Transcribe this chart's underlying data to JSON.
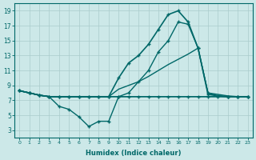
{
  "xlabel": "Humidex (Indice chaleur)",
  "bg_color": "#cce8e8",
  "grid_color": "#aacccc",
  "line_color": "#006868",
  "xlim": [
    -0.5,
    23.5
  ],
  "ylim": [
    2.0,
    20.0
  ],
  "xticks": [
    0,
    1,
    2,
    3,
    4,
    5,
    6,
    7,
    8,
    9,
    10,
    11,
    12,
    13,
    14,
    15,
    16,
    17,
    18,
    19,
    20,
    21,
    22,
    23
  ],
  "yticks": [
    3,
    5,
    7,
    9,
    11,
    13,
    15,
    17,
    19
  ],
  "curves": [
    {
      "x": [
        0,
        1,
        2,
        3,
        4,
        5,
        6,
        7,
        8,
        9,
        10,
        11,
        12,
        13,
        14,
        15,
        16,
        17,
        18,
        19,
        20,
        21,
        22,
        23
      ],
      "y": [
        8.3,
        8.0,
        7.7,
        7.5,
        7.5,
        7.5,
        7.5,
        7.5,
        7.5,
        7.5,
        7.5,
        7.5,
        7.5,
        7.5,
        7.5,
        7.5,
        7.5,
        7.5,
        7.5,
        7.5,
        7.5,
        7.5,
        7.5,
        7.5
      ],
      "marker": null,
      "lw": 1.0
    },
    {
      "x": [
        0,
        1,
        2,
        3,
        4,
        5,
        6,
        7,
        8,
        9,
        10,
        11,
        12,
        13,
        14,
        15,
        16,
        17,
        18,
        19,
        20,
        21,
        22,
        23
      ],
      "y": [
        8.3,
        8.0,
        7.7,
        7.5,
        6.2,
        5.8,
        4.8,
        3.5,
        4.2,
        4.2,
        7.5,
        7.5,
        7.5,
        7.5,
        7.5,
        7.5,
        7.5,
        7.5,
        7.5,
        7.5,
        7.5,
        7.5,
        7.5,
        7.5
      ],
      "marker": "+",
      "lw": 1.0
    },
    {
      "x": [
        0,
        1,
        2,
        3,
        4,
        5,
        6,
        7,
        8,
        9,
        10,
        11,
        12,
        13,
        14,
        15,
        16,
        17,
        18,
        19,
        20,
        21,
        22,
        23
      ],
      "y": [
        8.3,
        8.0,
        7.7,
        7.5,
        7.5,
        7.5,
        7.5,
        7.5,
        7.5,
        7.5,
        8.5,
        9.0,
        9.5,
        10.2,
        11.0,
        11.8,
        12.5,
        13.2,
        14.0,
        8.0,
        7.8,
        7.6,
        7.5,
        7.5
      ],
      "marker": null,
      "lw": 1.0
    },
    {
      "x": [
        0,
        1,
        2,
        3,
        4,
        5,
        6,
        7,
        8,
        9,
        10,
        11,
        12,
        13,
        14,
        15,
        16,
        17,
        18,
        19,
        20,
        21,
        22,
        23
      ],
      "y": [
        8.3,
        8.0,
        7.7,
        7.5,
        7.5,
        7.5,
        7.5,
        7.5,
        7.5,
        7.5,
        10.0,
        12.0,
        13.0,
        14.5,
        16.5,
        18.5,
        19.0,
        17.5,
        14.0,
        7.8,
        7.6,
        7.5,
        7.5,
        7.5
      ],
      "marker": "+",
      "lw": 1.2
    },
    {
      "x": [
        0,
        1,
        2,
        3,
        4,
        5,
        6,
        7,
        8,
        9,
        10,
        11,
        12,
        13,
        14,
        15,
        16,
        17,
        18,
        19,
        20,
        21,
        22,
        23
      ],
      "y": [
        8.3,
        8.0,
        7.7,
        7.5,
        7.5,
        7.5,
        7.5,
        7.5,
        7.5,
        7.5,
        7.5,
        8.0,
        9.5,
        11.0,
        13.5,
        15.0,
        17.5,
        17.2,
        14.0,
        8.0,
        7.6,
        7.5,
        7.5,
        7.5
      ],
      "marker": "+",
      "lw": 1.0
    }
  ]
}
